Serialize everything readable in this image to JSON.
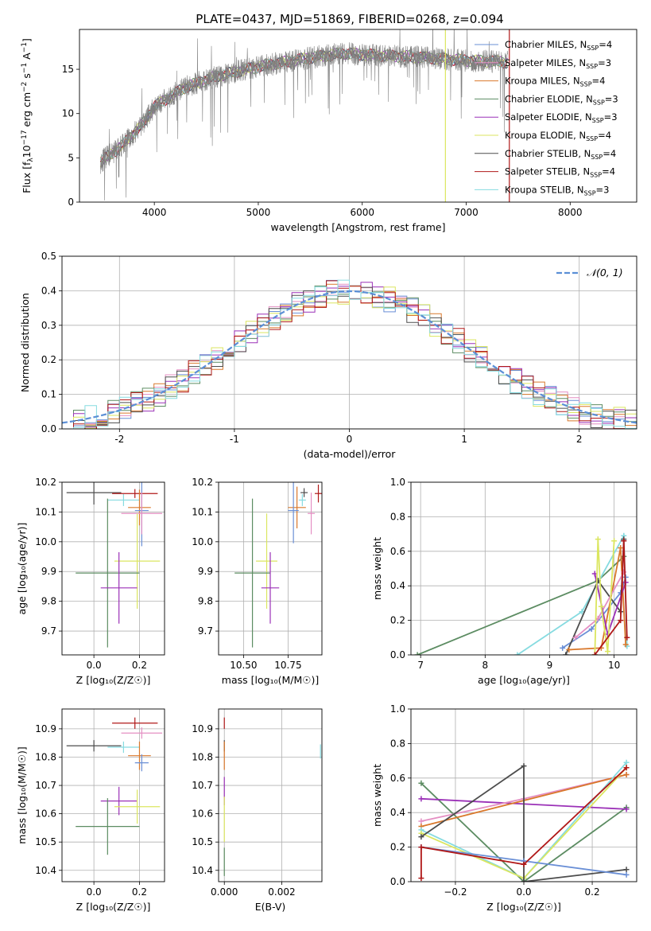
{
  "figure_title": "PLATE=0437, MJD=51869, FIBERID=0268, z=0.094",
  "colors": {
    "Chabrier MILES": "#6a8fd6",
    "Salpeter MILES": "#e48fc3",
    "Kroupa MILES": "#d9782b",
    "Chabrier ELODIE": "#5c8c62",
    "Salpeter ELODIE": "#9b31b7",
    "Kroupa ELODIE": "#dbe660",
    "Chabrier STELIB": "#4d4d4d",
    "Salpeter STELIB": "#b01818",
    "Kroupa STELIB": "#86dbe0",
    "data": "#808080",
    "normal": "#5b8fd6"
  },
  "chart_data": [
    {
      "id": "spectrum",
      "type": "line",
      "title": "PLATE=0437, MJD=51869, FIBERID=0268, z=0.094",
      "xlabel": "wavelength [Angstrom, rest frame]",
      "ylabel": "Flux [f",
      "ylabel_parts": {
        "a": "Flux [f",
        "b": "λ",
        "c": "10",
        "d": "−17",
        "e": " erg cm",
        "f": "−2",
        "g": " s",
        "h": "−1",
        "i": " A",
        "j": "−1",
        "k": "]"
      },
      "xlim": [
        3280,
        8640
      ],
      "ylim": [
        0,
        19.5
      ],
      "xticks": [
        4000,
        5000,
        6000,
        7000,
        8000
      ],
      "yticks": [
        0,
        5,
        10,
        15
      ],
      "legend_position": "upper right",
      "legend": [
        {
          "series": "Chabrier MILES",
          "label": "Chabrier MILES, N",
          "sub": "SSP",
          "n": "=4"
        },
        {
          "series": "Salpeter MILES",
          "label": "Salpeter MILES, N",
          "sub": "SSP",
          "n": "=3"
        },
        {
          "series": "Kroupa MILES",
          "label": "Kroupa MILES, N",
          "sub": "SSP",
          "n": "=4"
        },
        {
          "series": "Chabrier ELODIE",
          "label": "Chabrier ELODIE, N",
          "sub": "SSP",
          "n": "=3"
        },
        {
          "series": "Salpeter ELODIE",
          "label": "Salpeter ELODIE, N",
          "sub": "SSP",
          "n": "=3"
        },
        {
          "series": "Kroupa ELODIE",
          "label": "Kroupa ELODIE, N",
          "sub": "SSP",
          "n": "=4"
        },
        {
          "series": "Chabrier STELIB",
          "label": "Chabrier STELIB, N",
          "sub": "SSP",
          "n": "=4"
        },
        {
          "series": "Salpeter STELIB",
          "label": "Salpeter STELIB, N",
          "sub": "SSP",
          "n": "=4"
        },
        {
          "series": "Kroupa STELIB",
          "label": "Kroupa STELIB, N",
          "sub": "SSP",
          "n": "=3"
        }
      ],
      "continuum_wavelength": [
        3480,
        3700,
        3900,
        4000,
        4300,
        4600,
        5000,
        5500,
        5800,
        6100,
        6500,
        7000,
        7400
      ],
      "continuum_flux": [
        4.5,
        6.5,
        9.0,
        10.8,
        13.0,
        14.2,
        15.3,
        16.3,
        16.8,
        16.6,
        16.4,
        16.0,
        15.8
      ],
      "vertical_lines": [
        {
          "series": "Kroupa ELODIE",
          "x": 6800
        },
        {
          "series": "Salpeter STELIB",
          "x": 7415
        }
      ]
    },
    {
      "id": "residuals",
      "type": "histogram",
      "xlabel": "(data-model)/error",
      "ylabel": "Normed distribution",
      "xlim": [
        -2.5,
        2.5
      ],
      "ylim": [
        0,
        0.5
      ],
      "xticks": [
        -2,
        -1,
        0,
        1,
        2
      ],
      "yticks": [
        0.0,
        0.1,
        0.2,
        0.3,
        0.4,
        0.5
      ],
      "bin_width": 0.1,
      "legend": [
        {
          "label": "𝒩(0, 1)",
          "style": "dashed"
        }
      ],
      "grid": true
    },
    {
      "id": "age_vs_Z",
      "type": "errorbar",
      "xlabel": "Z [log₁₀(Z/Z☉)]",
      "ylabel": "age  [log₁₀(age/yr)]",
      "xlim": [
        -0.14,
        0.31
      ],
      "ylim": [
        9.62,
        10.2
      ],
      "xticks": [
        0.0,
        0.2
      ],
      "xticklabels": [
        "0.0",
        "0.2"
      ],
      "yticks": [
        9.7,
        9.8,
        9.9,
        10.0,
        10.1,
        10.2
      ],
      "yticklabels": [
        "9.7",
        "9.8",
        "9.9",
        "10.0",
        "10.1",
        "10.2"
      ],
      "points": [
        {
          "series": "Chabrier STELIB",
          "x": 0.0,
          "xerr": 0.12,
          "y": 10.165,
          "yerr": 0.04
        },
        {
          "series": "Salpeter STELIB",
          "x": 0.18,
          "xerr": 0.1,
          "y": 10.162,
          "yerr": 0.015
        },
        {
          "series": "Kroupa STELIB",
          "x": 0.13,
          "xerr": 0.07,
          "y": 10.14,
          "yerr": 0.02
        },
        {
          "series": "Kroupa MILES",
          "x": 0.2,
          "xerr": 0.05,
          "y": 10.115,
          "yerr": 0.06
        },
        {
          "series": "Chabrier MILES",
          "x": 0.21,
          "xerr": 0.03,
          "y": 10.105,
          "yerr": 0.12
        },
        {
          "series": "Salpeter MILES",
          "x": 0.21,
          "xerr": 0.09,
          "y": 10.095,
          "yerr": 0.07
        },
        {
          "series": "Kroupa ELODIE",
          "x": 0.19,
          "xerr": 0.1,
          "y": 9.935,
          "yerr": 0.16
        },
        {
          "series": "Chabrier ELODIE",
          "x": 0.06,
          "xerr": 0.14,
          "y": 9.895,
          "yerr": 0.25
        },
        {
          "series": "Salpeter ELODIE",
          "x": 0.11,
          "xerr": 0.08,
          "y": 9.845,
          "yerr": 0.12
        }
      ]
    },
    {
      "id": "age_vs_mass",
      "type": "errorbar",
      "xlabel": "mass [log₁₀(M/M☉)]",
      "ylabel": "",
      "xlim": [
        10.36,
        10.94
      ],
      "ylim": [
        9.62,
        10.2
      ],
      "xticks": [
        10.5,
        10.75
      ],
      "xticklabels": [
        "10.50",
        "10.75"
      ],
      "yticks": [
        9.7,
        9.8,
        9.9,
        10.0,
        10.1,
        10.2
      ],
      "yticklabels": [
        "9.7",
        "9.8",
        "9.9",
        "10.0",
        "10.1",
        "10.2"
      ],
      "points": [
        {
          "series": "Chabrier STELIB",
          "x": 10.84,
          "xerr": 0.02,
          "y": 10.165,
          "yerr": 0.015
        },
        {
          "series": "Salpeter STELIB",
          "x": 10.92,
          "xerr": 0.02,
          "y": 10.162,
          "yerr": 0.03
        },
        {
          "series": "Kroupa STELIB",
          "x": 10.83,
          "xerr": 0.02,
          "y": 10.14,
          "yerr": 0.02
        },
        {
          "series": "Kroupa MILES",
          "x": 10.8,
          "xerr": 0.05,
          "y": 10.115,
          "yerr": 0.07
        },
        {
          "series": "Chabrier MILES",
          "x": 10.78,
          "xerr": 0.03,
          "y": 10.105,
          "yerr": 0.11
        },
        {
          "series": "Salpeter MILES",
          "x": 10.88,
          "xerr": 0.02,
          "y": 10.095,
          "yerr": 0.07
        },
        {
          "series": "Kroupa ELODIE",
          "x": 10.63,
          "xerr": 0.06,
          "y": 9.935,
          "yerr": 0.16
        },
        {
          "series": "Chabrier ELODIE",
          "x": 10.55,
          "xerr": 0.1,
          "y": 9.895,
          "yerr": 0.25
        },
        {
          "series": "Salpeter ELODIE",
          "x": 10.65,
          "xerr": 0.05,
          "y": 9.845,
          "yerr": 0.12
        }
      ]
    },
    {
      "id": "weights_vs_age",
      "type": "line",
      "xlabel": "age  [log₁₀(age/yr)]",
      "ylabel": "mass weight",
      "xlim": [
        6.85,
        10.35
      ],
      "ylim": [
        0,
        1
      ],
      "xticks": [
        7,
        8,
        9,
        10
      ],
      "yticks": [
        0.0,
        0.2,
        0.4,
        0.6,
        0.8,
        1.0
      ],
      "series": [
        {
          "name": "Chabrier ELODIE",
          "x": [
            6.95,
            9.75,
            10.15
          ],
          "y": [
            0.0,
            0.43,
            0.57
          ]
        },
        {
          "name": "Kroupa STELIB",
          "x": [
            8.5,
            9.5,
            10.15,
            10.2
          ],
          "y": [
            0.0,
            0.25,
            0.69,
            0.05
          ]
        },
        {
          "name": "Chabrier MILES",
          "x": [
            9.2,
            9.65,
            10.1,
            10.18
          ],
          "y": [
            0.04,
            0.15,
            0.36,
            0.45
          ]
        },
        {
          "name": "Chabrier STELIB",
          "x": [
            9.25,
            9.75,
            10.1,
            10.15
          ],
          "y": [
            0.0,
            0.43,
            0.25,
            0.67
          ]
        },
        {
          "name": "Kroupa MILES",
          "x": [
            9.3,
            9.8,
            10.1,
            10.18
          ],
          "y": [
            0.03,
            0.04,
            0.62,
            0.06
          ]
        },
        {
          "name": "Salpeter MILES",
          "x": [
            9.4,
            9.75,
            10.15
          ],
          "y": [
            0.1,
            0.21,
            0.48
          ]
        },
        {
          "name": "Salpeter ELODIE",
          "x": [
            9.7,
            9.9,
            10.18
          ],
          "y": [
            0.47,
            0.12,
            0.42
          ]
        },
        {
          "name": "Kroupa ELODIE",
          "x": [
            9.7,
            9.75,
            9.8,
            9.9,
            10.0
          ],
          "y": [
            0.0,
            0.67,
            0.28,
            0.02,
            0.66
          ]
        },
        {
          "name": "Salpeter STELIB",
          "x": [
            9.7,
            10.1,
            10.15,
            10.2
          ],
          "y": [
            0.0,
            0.2,
            0.66,
            0.1
          ]
        }
      ]
    },
    {
      "id": "mass_vs_Z",
      "type": "errorbar",
      "xlabel": "Z [log₁₀(Z/Z☉)]",
      "ylabel": "mass [log₁₀(M/M☉)]",
      "xlim": [
        -0.14,
        0.31
      ],
      "ylim": [
        10.36,
        10.97
      ],
      "xticks": [
        0.0,
        0.2
      ],
      "xticklabels": [
        "0.0",
        "0.2"
      ],
      "yticks": [
        10.4,
        10.5,
        10.6,
        10.7,
        10.8,
        10.9
      ],
      "yticklabels": [
        "10.4",
        "10.5",
        "10.6",
        "10.7",
        "10.8",
        "10.9"
      ],
      "points": [
        {
          "series": "Salpeter STELIB",
          "x": 0.18,
          "xerr": 0.1,
          "y": 10.92,
          "yerr": 0.02
        },
        {
          "series": "Salpeter MILES",
          "x": 0.21,
          "xerr": 0.09,
          "y": 10.885,
          "yerr": 0.02
        },
        {
          "series": "Chabrier STELIB",
          "x": 0.0,
          "xerr": 0.12,
          "y": 10.84,
          "yerr": 0.02
        },
        {
          "series": "Kroupa STELIB",
          "x": 0.13,
          "xerr": 0.07,
          "y": 10.835,
          "yerr": 0.02
        },
        {
          "series": "Kroupa MILES",
          "x": 0.2,
          "xerr": 0.05,
          "y": 10.805,
          "yerr": 0.05
        },
        {
          "series": "Chabrier MILES",
          "x": 0.21,
          "xerr": 0.03,
          "y": 10.78,
          "yerr": 0.03
        },
        {
          "series": "Salpeter ELODIE",
          "x": 0.11,
          "xerr": 0.08,
          "y": 10.645,
          "yerr": 0.05
        },
        {
          "series": "Kroupa ELODIE",
          "x": 0.19,
          "xerr": 0.1,
          "y": 10.625,
          "yerr": 0.06
        },
        {
          "series": "Chabrier ELODIE",
          "x": 0.06,
          "xerr": 0.14,
          "y": 10.555,
          "yerr": 0.1
        }
      ]
    },
    {
      "id": "mass_vs_ebv",
      "type": "errorbar",
      "xlabel": "E(B-V)",
      "ylabel": "",
      "xlim": [
        -0.0002,
        0.0034
      ],
      "ylim": [
        10.36,
        10.97
      ],
      "xticks": [
        0.0,
        0.002
      ],
      "xticklabels": [
        "0.000",
        "0.002"
      ],
      "yticks": [
        10.4,
        10.5,
        10.6,
        10.7,
        10.8,
        10.9
      ],
      "yticklabels": [
        "10.4",
        "10.5",
        "10.6",
        "10.7",
        "10.8",
        "10.9"
      ],
      "points": [
        {
          "series": "Salpeter STELIB",
          "x": 0.0,
          "xerr": 0.0,
          "y": 10.92,
          "yerr": 0.02
        },
        {
          "series": "Chabrier STELIB",
          "x": 0.0,
          "xerr": 0.0,
          "y": 10.84,
          "yerr": 0.02
        },
        {
          "series": "Kroupa MILES",
          "x": 0.0,
          "xerr": 0.0,
          "y": 10.805,
          "yerr": 0.05
        },
        {
          "series": "Salpeter ELODIE",
          "x": 0.0,
          "xerr": 0.0,
          "y": 10.68,
          "yerr": 0.05
        },
        {
          "series": "Kroupa ELODIE",
          "x": 0.0,
          "xerr": 0.0,
          "y": 10.58,
          "yerr": 0.08
        },
        {
          "series": "Chabrier ELODIE",
          "x": 0.0,
          "xerr": 0.0,
          "y": 10.43,
          "yerr": 0.05
        },
        {
          "series": "Kroupa STELIB",
          "x": 0.00335,
          "xerr": 0.0,
          "y": 10.82,
          "yerr": 0.025
        }
      ]
    },
    {
      "id": "weights_vs_Z",
      "type": "line",
      "xlabel": "Z [log₁₀(Z/Z☉)]",
      "ylabel": "mass weight",
      "xlim": [
        -0.33,
        0.33
      ],
      "ylim": [
        0,
        1
      ],
      "xticks": [
        -0.2,
        0.0,
        0.2
      ],
      "xticklabels": [
        "−0.2",
        "0.0",
        "0.2"
      ],
      "yticks": [
        0.0,
        0.2,
        0.4,
        0.6,
        0.8,
        1.0
      ],
      "series": [
        {
          "name": "Chabrier ELODIE",
          "x": [
            -0.3,
            0.0,
            0.3
          ],
          "y": [
            0.57,
            0.0,
            0.43
          ]
        },
        {
          "name": "Salpeter ELODIE",
          "x": [
            -0.3,
            0.3
          ],
          "y": [
            0.48,
            0.42
          ]
        },
        {
          "name": "Salpeter MILES",
          "x": [
            -0.3,
            0.0,
            0.3
          ],
          "y": [
            0.35,
            0.48,
            0.62
          ]
        },
        {
          "name": "Kroupa MILES",
          "x": [
            -0.3,
            0.3
          ],
          "y": [
            0.32,
            0.62
          ]
        },
        {
          "name": "Kroupa STELIB",
          "x": [
            -0.3,
            0.0,
            0.3
          ],
          "y": [
            0.3,
            0.02,
            0.69
          ]
        },
        {
          "name": "Kroupa ELODIE",
          "x": [
            -0.3,
            0.0,
            0.3
          ],
          "y": [
            0.28,
            0.02,
            0.66
          ]
        },
        {
          "name": "Chabrier STELIB",
          "x": [
            -0.3,
            0.0,
            0.0,
            0.3
          ],
          "y": [
            0.26,
            0.67,
            0.0,
            0.07
          ]
        },
        {
          "name": "Chabrier MILES",
          "x": [
            -0.3,
            0.0,
            0.3
          ],
          "y": [
            0.2,
            0.12,
            0.04
          ]
        },
        {
          "name": "Salpeter STELIB",
          "x": [
            -0.3,
            -0.3,
            0.0,
            0.3
          ],
          "y": [
            0.02,
            0.2,
            0.1,
            0.66
          ]
        }
      ]
    }
  ]
}
